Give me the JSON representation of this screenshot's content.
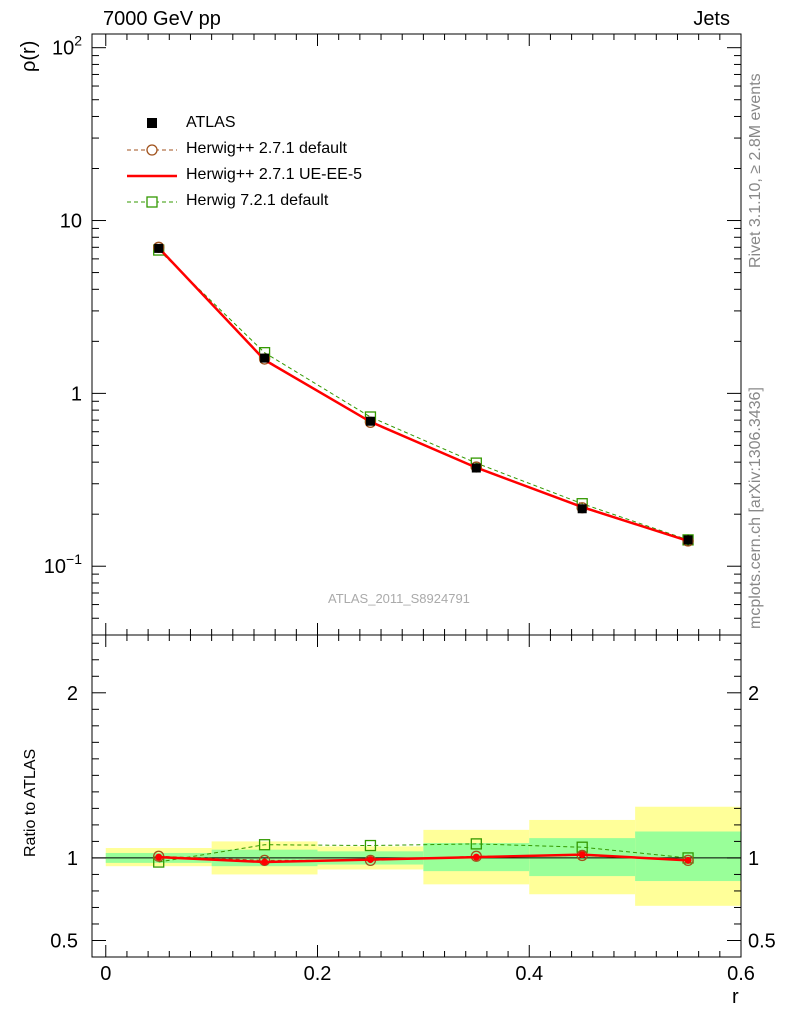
{
  "header": {
    "left": "7000 GeV pp",
    "right": "Jets"
  },
  "side_labels": {
    "rivet": "Rivet 3.1.10, ≥ 2.8M events",
    "mcplots": "mcplots.cern.ch [arXiv:1306.3436]"
  },
  "watermark": "ATLAS_2011_S8924791",
  "chart_data": [
    {
      "type": "line",
      "panel": "main",
      "ylabel": "ρ(r)",
      "yscale": "log",
      "ylim": [
        0.04,
        120
      ],
      "xlim": [
        -0.013,
        0.6
      ],
      "y_ticks": [
        {
          "value": 100,
          "base": "10",
          "exp": "2"
        },
        {
          "value": 10,
          "base": "10",
          "exp": ""
        },
        {
          "value": 1,
          "base": "1",
          "exp": ""
        },
        {
          "value": 0.1,
          "base": "10",
          "exp": "−1"
        }
      ],
      "legend_position": "top-left",
      "x": [
        0.05,
        0.15,
        0.25,
        0.35,
        0.45,
        0.55
      ],
      "series": [
        {
          "name": "ATLAS",
          "style": "data",
          "color": "#000000",
          "values": [
            6.9,
            1.6,
            0.69,
            0.37,
            0.215,
            0.142
          ],
          "err": [
            0.2,
            0.05,
            0.03,
            0.02,
            0.012,
            0.01
          ]
        },
        {
          "name": "Herwig++ 2.7.1 default",
          "style": "dashed-circle",
          "color": "#a0521c",
          "values": [
            7.0,
            1.58,
            0.68,
            0.375,
            0.218,
            0.14
          ]
        },
        {
          "name": "Herwig++ 2.7.1 UE-EE-5",
          "style": "solid",
          "color": "#ff0000",
          "values": [
            6.95,
            1.56,
            0.685,
            0.372,
            0.22,
            0.14
          ]
        },
        {
          "name": "Herwig 7.2.1 default",
          "style": "dashed-square",
          "color": "#339900",
          "values": [
            6.75,
            1.72,
            0.73,
            0.395,
            0.23,
            0.142
          ]
        }
      ]
    },
    {
      "type": "line",
      "panel": "ratio",
      "ylabel": "Ratio to ATLAS",
      "xlabel": "r",
      "ylim": [
        0.4,
        2.35
      ],
      "xlim": [
        -0.013,
        0.6
      ],
      "x_ticks": [
        "0",
        "0.2",
        "0.4",
        "0.6"
      ],
      "x_tick_values": [
        0,
        0.2,
        0.4,
        0.6
      ],
      "y_ticks": [
        "0.5",
        "1",
        "2"
      ],
      "y_tick_values": [
        0.5,
        1,
        2
      ],
      "bands": {
        "bins": [
          [
            0.0,
            0.1
          ],
          [
            0.1,
            0.2
          ],
          [
            0.2,
            0.3
          ],
          [
            0.3,
            0.4
          ],
          [
            0.4,
            0.5
          ],
          [
            0.5,
            0.6
          ]
        ],
        "outer": [
          [
            0.95,
            1.06
          ],
          [
            0.9,
            1.1
          ],
          [
            0.93,
            1.07
          ],
          [
            0.84,
            1.17
          ],
          [
            0.78,
            1.23
          ],
          [
            0.71,
            1.31
          ]
        ],
        "inner": [
          [
            0.97,
            1.03
          ],
          [
            0.95,
            1.05
          ],
          [
            0.96,
            1.04
          ],
          [
            0.92,
            1.09
          ],
          [
            0.89,
            1.12
          ],
          [
            0.86,
            1.16
          ]
        ],
        "outer_color": "#ffff99",
        "inner_color": "#99ff99"
      },
      "x": [
        0.05,
        0.15,
        0.25,
        0.35,
        0.45,
        0.55
      ],
      "series": [
        {
          "name": "Herwig++ 2.7.1 default",
          "color": "#a0521c",
          "values": [
            1.01,
            0.985,
            0.985,
            1.01,
            1.015,
            0.985
          ]
        },
        {
          "name": "Herwig++ 2.7.1 UE-EE-5",
          "color": "#ff0000",
          "values": [
            1.005,
            0.975,
            0.99,
            1.005,
            1.02,
            0.985
          ]
        },
        {
          "name": "Herwig 7.2.1 default",
          "color": "#339900",
          "values": [
            0.975,
            1.08,
            1.075,
            1.085,
            1.065,
            1.0
          ]
        }
      ]
    }
  ]
}
